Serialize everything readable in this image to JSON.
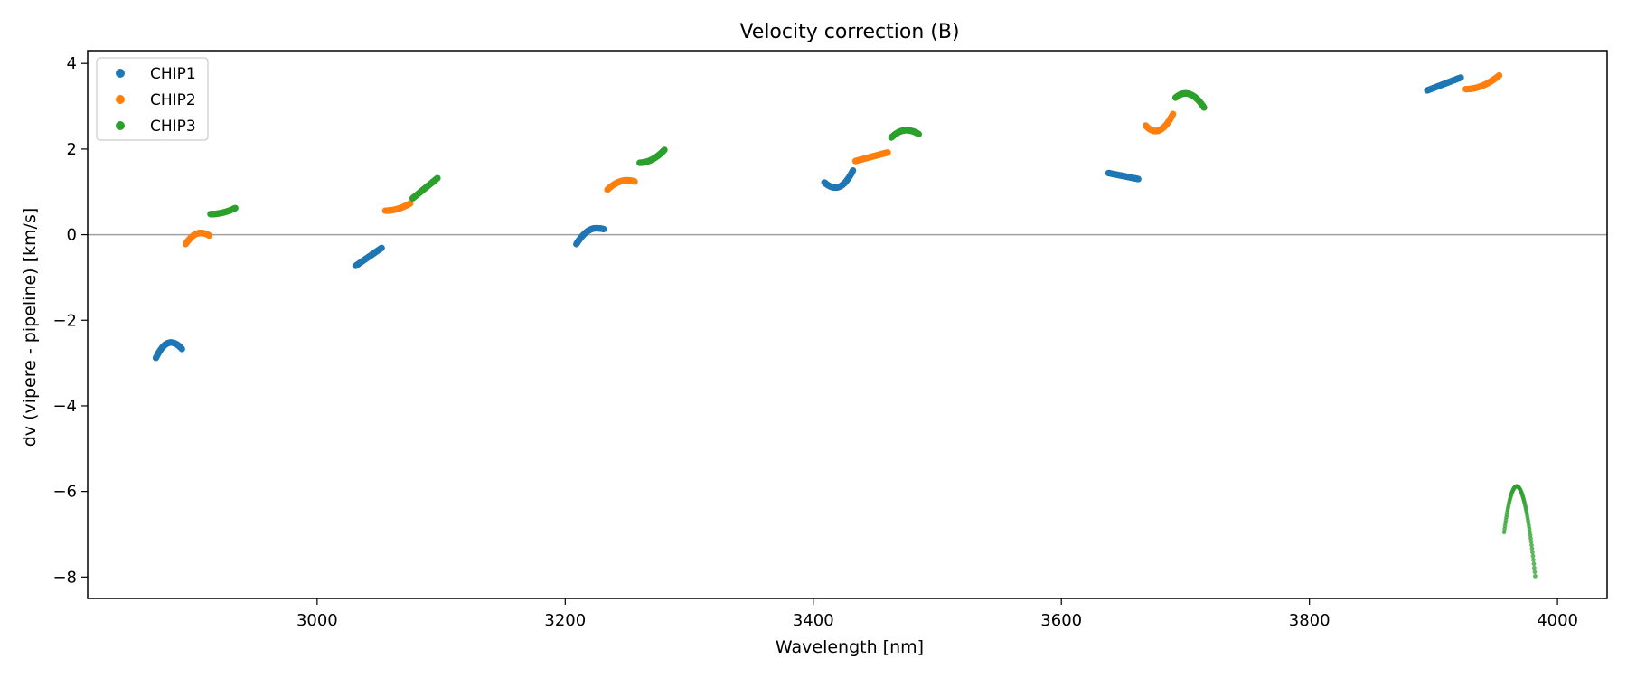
{
  "chart_data": {
    "type": "scatter",
    "title": "Velocity correction (B)",
    "xlabel": "Wavelength [nm]",
    "ylabel": "dv (vipere - pipeline) [km/s]",
    "xlim": [
      2815,
      4040
    ],
    "ylim": [
      -8.5,
      4.3
    ],
    "xticks": [
      3000,
      3200,
      3400,
      3600,
      3800,
      4000
    ],
    "yticks": [
      -8,
      -6,
      -4,
      -2,
      0,
      2,
      4
    ],
    "ytick_labels": [
      "−8",
      "−6",
      "−4",
      "−2",
      "0",
      "2",
      "4"
    ],
    "hline": 0,
    "legend_position": "upper-left",
    "series": [
      {
        "name": "CHIP1",
        "color": "#1f77b4",
        "segments": [
          {
            "x0": 2870,
            "x1": 2891,
            "shape": "peak",
            "y0": -2.88,
            "ypeak": -2.52,
            "xpeak": 2882,
            "y1": -2.67
          },
          {
            "x0": 3031,
            "x1": 3052,
            "shape": "linear",
            "y0": -0.73,
            "y1": -0.31
          },
          {
            "x0": 3209,
            "x1": 3231,
            "shape": "peak",
            "y0": -0.22,
            "ypeak": 0.15,
            "xpeak": 3225,
            "y1": 0.13
          },
          {
            "x0": 3409,
            "x1": 3432,
            "shape": "valley",
            "y0": 1.22,
            "ypeak": 1.1,
            "xpeak": 3418,
            "y1": 1.5
          },
          {
            "x0": 3638,
            "x1": 3662,
            "shape": "linear",
            "y0": 1.44,
            "y1": 1.3
          },
          {
            "x0": 3895,
            "x1": 3922,
            "shape": "linear",
            "y0": 3.37,
            "y1": 3.67
          }
        ]
      },
      {
        "name": "CHIP2",
        "color": "#ff7f0e",
        "segments": [
          {
            "x0": 2894,
            "x1": 2913,
            "shape": "peak",
            "y0": -0.22,
            "ypeak": 0.04,
            "xpeak": 2906,
            "y1": -0.02
          },
          {
            "x0": 3055,
            "x1": 3075,
            "shape": "rising",
            "y0": 0.56,
            "y1": 0.73
          },
          {
            "x0": 3234,
            "x1": 3256,
            "shape": "peak",
            "y0": 1.05,
            "ypeak": 1.27,
            "xpeak": 3250,
            "y1": 1.24
          },
          {
            "x0": 3434,
            "x1": 3460,
            "shape": "linear",
            "y0": 1.72,
            "y1": 1.92
          },
          {
            "x0": 3668,
            "x1": 3690,
            "shape": "valley",
            "y0": 2.55,
            "ypeak": 2.42,
            "xpeak": 3676,
            "y1": 2.82
          },
          {
            "x0": 3926,
            "x1": 3953,
            "shape": "rising",
            "y0": 3.4,
            "y1": 3.72
          }
        ]
      },
      {
        "name": "CHIP3",
        "color": "#2ca02c",
        "segments": [
          {
            "x0": 2914,
            "x1": 2934,
            "shape": "rising",
            "y0": 0.48,
            "y1": 0.62
          },
          {
            "x0": 3077,
            "x1": 3097,
            "shape": "linear",
            "y0": 0.85,
            "y1": 1.32
          },
          {
            "x0": 3260,
            "x1": 3280,
            "shape": "rising",
            "y0": 1.68,
            "y1": 1.98
          },
          {
            "x0": 3463,
            "x1": 3485,
            "shape": "peak",
            "y0": 2.27,
            "ypeak": 2.44,
            "xpeak": 3475,
            "y1": 2.35
          },
          {
            "x0": 3692,
            "x1": 3715,
            "shape": "peak",
            "y0": 3.2,
            "ypeak": 3.3,
            "xpeak": 3700,
            "y1": 2.97
          },
          {
            "x0": 3957,
            "x1": 3982,
            "shape": "peak",
            "y0": -6.95,
            "ypeak": -5.88,
            "xpeak": 3967,
            "y1": -7.98,
            "sparse": true
          }
        ]
      }
    ]
  }
}
